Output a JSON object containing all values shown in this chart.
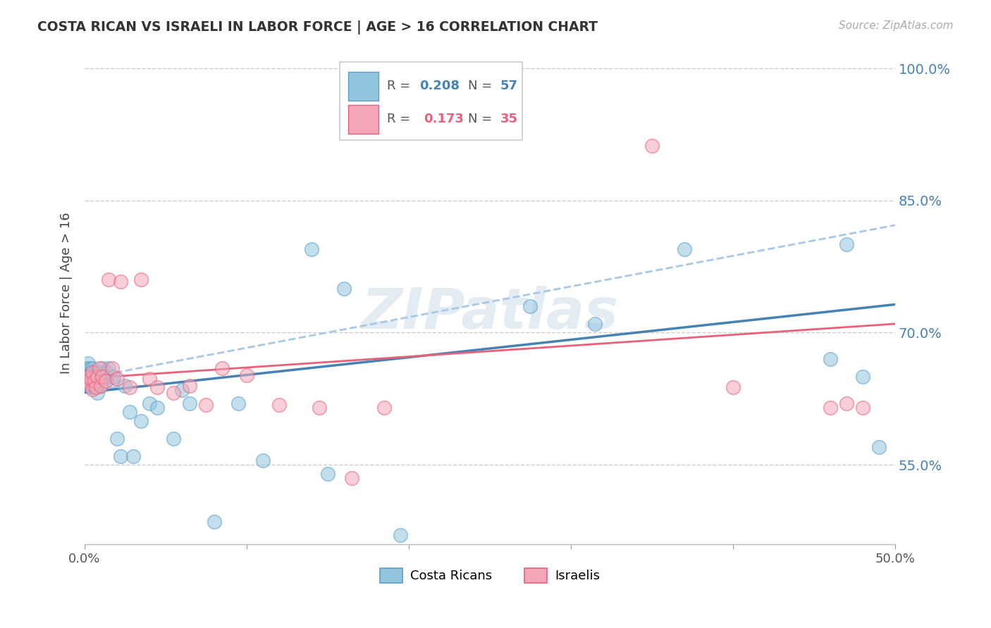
{
  "title": "COSTA RICAN VS ISRAELI IN LABOR FORCE | AGE > 16 CORRELATION CHART",
  "source": "Source: ZipAtlas.com",
  "ylabel": "In Labor Force | Age > 16",
  "xmin": 0.0,
  "xmax": 0.5,
  "ymin": 0.46,
  "ymax": 1.03,
  "yticks": [
    0.55,
    0.7,
    0.85,
    1.0
  ],
  "ytick_labels": [
    "55.0%",
    "70.0%",
    "85.0%",
    "100.0%"
  ],
  "xticks": [
    0.0,
    0.1,
    0.2,
    0.3,
    0.4,
    0.5
  ],
  "xtick_labels": [
    "0.0%",
    "",
    "",
    "",
    "",
    "50.0%"
  ],
  "color_blue": "#92c5de",
  "color_pink": "#f4a6b8",
  "color_blue_edge": "#5b9ec9",
  "color_pink_edge": "#e8607a",
  "color_blue_line": "#4682b4",
  "color_pink_line": "#e8607a",
  "color_dashed": "#a8c8e8",
  "color_axis_tick": "#4682b4",
  "background_color": "#ffffff",
  "watermark": "ZIPatlas",
  "costa_rican_x": [
    0.001,
    0.001,
    0.002,
    0.002,
    0.002,
    0.003,
    0.003,
    0.003,
    0.004,
    0.004,
    0.004,
    0.005,
    0.005,
    0.005,
    0.006,
    0.006,
    0.006,
    0.007,
    0.007,
    0.008,
    0.008,
    0.009,
    0.009,
    0.01,
    0.01,
    0.011,
    0.012,
    0.013,
    0.014,
    0.015,
    0.017,
    0.018,
    0.02,
    0.022,
    0.025,
    0.028,
    0.03,
    0.035,
    0.04,
    0.045,
    0.055,
    0.06,
    0.065,
    0.08,
    0.095,
    0.11,
    0.14,
    0.16,
    0.195,
    0.275,
    0.315,
    0.37,
    0.46,
    0.47,
    0.48,
    0.49,
    0.15
  ],
  "costa_rican_y": [
    0.65,
    0.66,
    0.648,
    0.658,
    0.665,
    0.64,
    0.652,
    0.66,
    0.638,
    0.645,
    0.655,
    0.642,
    0.65,
    0.66,
    0.638,
    0.645,
    0.652,
    0.65,
    0.655,
    0.632,
    0.645,
    0.648,
    0.655,
    0.64,
    0.65,
    0.66,
    0.648,
    0.65,
    0.655,
    0.66,
    0.645,
    0.65,
    0.58,
    0.56,
    0.64,
    0.61,
    0.56,
    0.6,
    0.62,
    0.615,
    0.58,
    0.635,
    0.62,
    0.485,
    0.62,
    0.555,
    0.795,
    0.75,
    0.47,
    0.73,
    0.71,
    0.795,
    0.67,
    0.8,
    0.65,
    0.57,
    0.54
  ],
  "israeli_x": [
    0.001,
    0.002,
    0.003,
    0.004,
    0.005,
    0.005,
    0.006,
    0.007,
    0.008,
    0.009,
    0.01,
    0.011,
    0.013,
    0.015,
    0.017,
    0.02,
    0.022,
    0.028,
    0.035,
    0.04,
    0.045,
    0.055,
    0.065,
    0.075,
    0.085,
    0.1,
    0.12,
    0.145,
    0.165,
    0.185,
    0.35,
    0.4,
    0.46,
    0.47,
    0.48
  ],
  "israeli_y": [
    0.645,
    0.65,
    0.642,
    0.648,
    0.636,
    0.655,
    0.645,
    0.638,
    0.65,
    0.66,
    0.64,
    0.65,
    0.645,
    0.76,
    0.66,
    0.648,
    0.758,
    0.638,
    0.76,
    0.648,
    0.638,
    0.632,
    0.64,
    0.618,
    0.66,
    0.652,
    0.618,
    0.615,
    0.535,
    0.615,
    0.912,
    0.638,
    0.615,
    0.62,
    0.615
  ],
  "blue_line_x": [
    0.0,
    0.5
  ],
  "blue_line_y": [
    0.632,
    0.732
  ],
  "pink_line_x": [
    0.0,
    0.5
  ],
  "pink_line_y": [
    0.648,
    0.71
  ],
  "dashed_line_x": [
    0.0,
    0.5
  ],
  "dashed_line_y": [
    0.648,
    0.822
  ]
}
